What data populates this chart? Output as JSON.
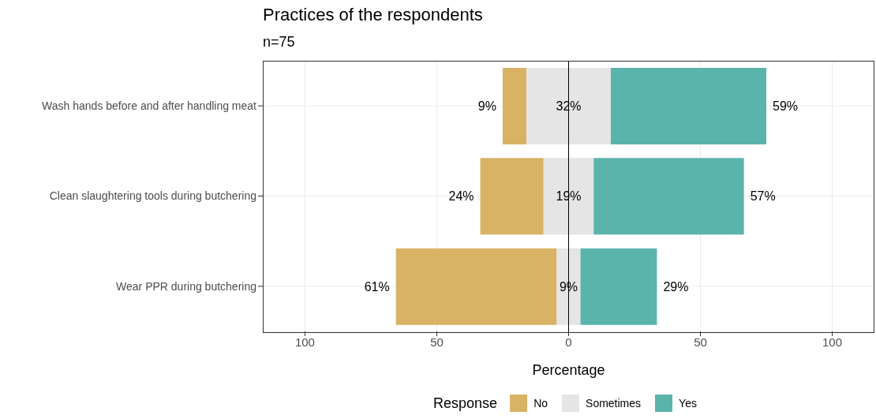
{
  "chart_data": {
    "type": "bar",
    "orientation": "horizontal",
    "title": "Practices of the respondents",
    "subtitle": "n=75",
    "xlabel": "Percentage",
    "legend_title": "Response",
    "categories": [
      "Wash hands before and after handling meat",
      "Clean slaughtering tools during butchering",
      "Wear PPR during butchering"
    ],
    "series": [
      {
        "name": "No",
        "color": "#d8b365",
        "base": [
          -25,
          -33.5,
          -65.5
        ],
        "values": [
          9,
          24,
          61
        ],
        "value_labels": [
          "9%",
          "24%",
          "61%"
        ]
      },
      {
        "name": "Sometimes",
        "color": "#e5e5e5",
        "base": [
          -16,
          -9.5,
          -4.5
        ],
        "values": [
          32,
          19,
          9
        ],
        "value_labels": [
          "32%",
          "19%",
          "9%"
        ]
      },
      {
        "name": "Yes",
        "color": "#5ab4ac",
        "base": [
          16,
          9.5,
          4.5
        ],
        "values": [
          59,
          57,
          29
        ],
        "value_labels": [
          "59%",
          "57%",
          "29%"
        ]
      }
    ],
    "xlim": [
      -116,
      116
    ],
    "xticks": [
      {
        "value": -100,
        "label": "100"
      },
      {
        "value": -50,
        "label": "50"
      },
      0,
      50,
      100
    ],
    "ref_lines": [
      {
        "axis": "x",
        "value": 0,
        "color": "#000000"
      }
    ],
    "grid": true,
    "legend": "bottom"
  }
}
